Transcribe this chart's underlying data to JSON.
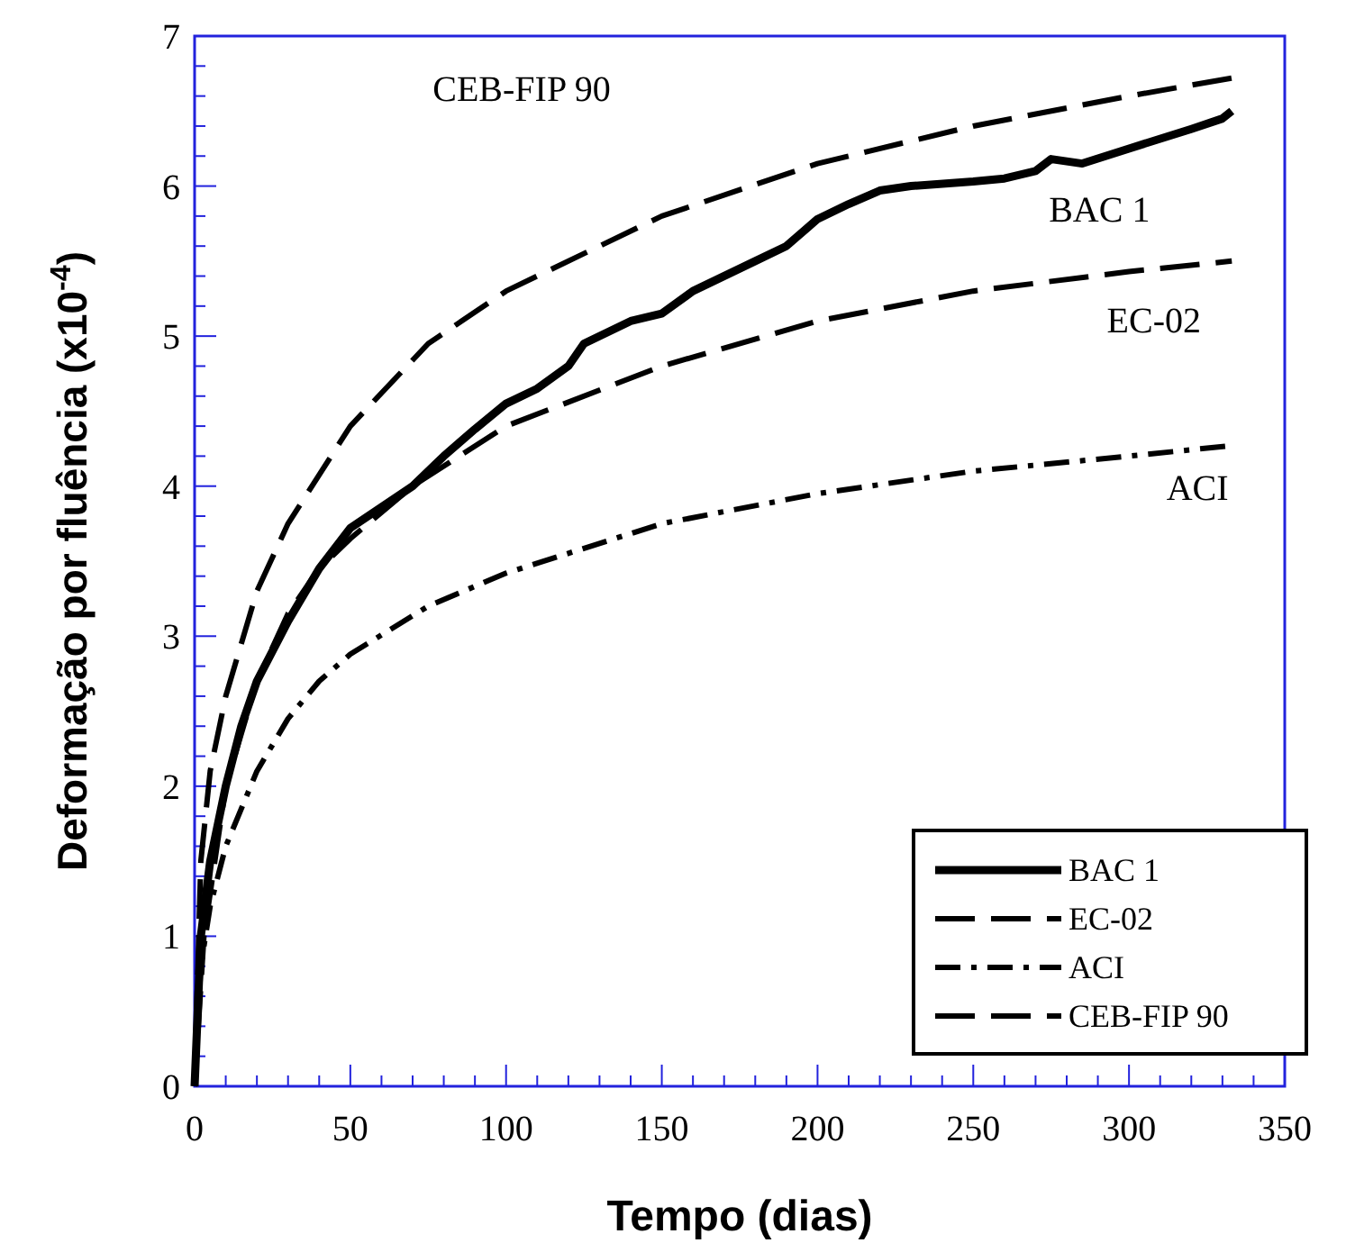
{
  "chart_data": {
    "type": "line",
    "xlabel": "Tempo (dias)",
    "ylabel": "Deformação por fluência  (x10$^{-4}$)",
    "xlim": [
      0,
      350
    ],
    "ylim": [
      0,
      7
    ],
    "xticks": [
      0,
      50,
      100,
      150,
      200,
      250,
      300,
      350
    ],
    "yticks": [
      0,
      1,
      2,
      3,
      4,
      5,
      6,
      7
    ],
    "grid": false,
    "legend": "bottom right",
    "marker": "none",
    "series": [
      {
        "name": "BAC 1",
        "color": "#000000",
        "line_style": "solid",
        "x": [
          0,
          2,
          5,
          10,
          15,
          20,
          30,
          40,
          50,
          60,
          70,
          80,
          90,
          100,
          110,
          120,
          125,
          140,
          150,
          160,
          180,
          190,
          200,
          210,
          220,
          230,
          250,
          260,
          270,
          275,
          285,
          300,
          320,
          330,
          333
        ],
        "values": [
          0,
          1,
          1.5,
          2,
          2.4,
          2.7,
          3.1,
          3.45,
          3.72,
          3.86,
          4,
          4.2,
          4.38,
          4.55,
          4.65,
          4.8,
          4.95,
          5.1,
          5.15,
          5.3,
          5.5,
          5.6,
          5.78,
          5.88,
          5.97,
          6,
          6.03,
          6.05,
          6.1,
          6.18,
          6.15,
          6.25,
          6.38,
          6.45,
          6.5
        ]
      },
      {
        "name": "EC-02",
        "color": "#000000",
        "line_style": "dashed",
        "x": [
          0,
          3,
          10,
          20,
          30,
          40,
          50,
          70,
          100,
          150,
          200,
          250,
          300,
          333
        ],
        "values": [
          0,
          1,
          2,
          2.7,
          3.15,
          3.45,
          3.65,
          4,
          4.4,
          4.8,
          5.1,
          5.3,
          5.43,
          5.5
        ]
      },
      {
        "name": "ACI",
        "color": "#000000",
        "line_style": "dotted",
        "x": [
          0,
          2,
          5,
          10,
          20,
          30,
          40,
          50,
          75,
          100,
          150,
          200,
          250,
          300,
          333
        ],
        "values": [
          0,
          0.8,
          1.2,
          1.6,
          2.1,
          2.45,
          2.7,
          2.88,
          3.2,
          3.42,
          3.75,
          3.95,
          4.1,
          4.2,
          4.27
        ]
      },
      {
        "name": "CEB-FIP 90",
        "color": "#000000",
        "line_style": "dashed",
        "x": [
          0,
          2,
          5,
          10,
          20,
          30,
          50,
          75,
          100,
          150,
          200,
          250,
          300,
          333
        ],
        "values": [
          0,
          1.5,
          2.1,
          2.6,
          3.3,
          3.75,
          4.4,
          4.95,
          5.3,
          5.8,
          6.15,
          6.4,
          6.6,
          6.72
        ]
      }
    ],
    "annotations": [
      "CEB-FIP 90",
      "BAC 1",
      "EC-02",
      "ACI"
    ]
  }
}
